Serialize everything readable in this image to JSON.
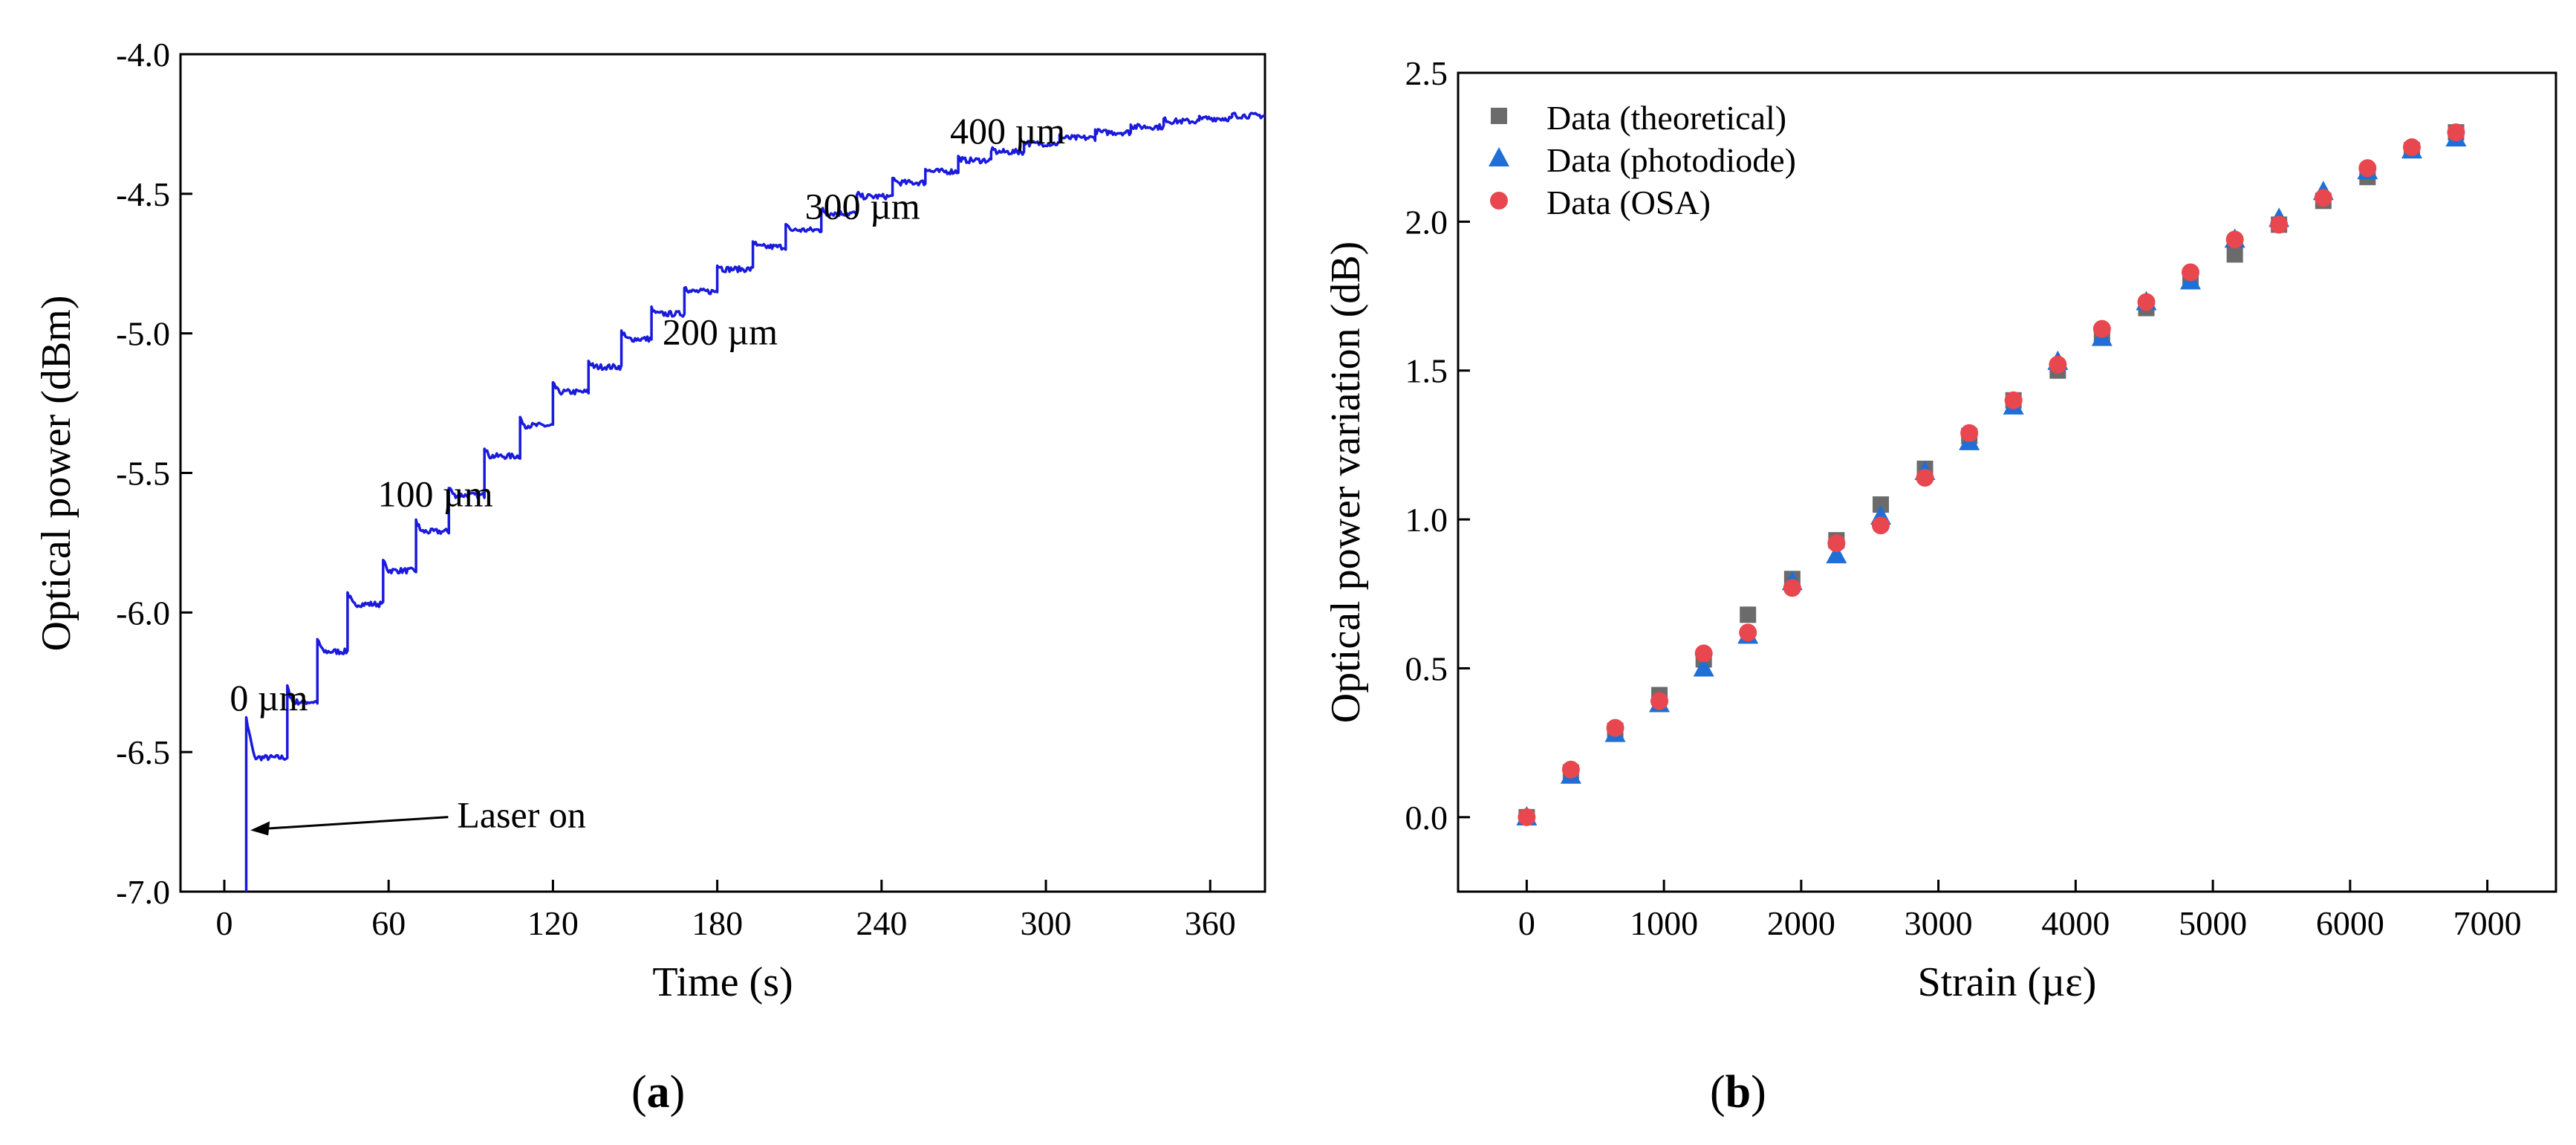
{
  "chart_data": [
    {
      "type": "line",
      "panel": "a",
      "caption_letter": "a",
      "title": "",
      "xlabel": "Time (s)",
      "ylabel": "Optical power (dBm)",
      "xlim": [
        -16,
        380
      ],
      "ylim": [
        -7.0,
        -4.0
      ],
      "xticks": [
        0,
        60,
        120,
        180,
        240,
        300,
        360
      ],
      "xtick_labels": [
        "0",
        "60",
        "120",
        "180",
        "240",
        "300",
        "360"
      ],
      "yticks": [
        -7.0,
        -6.5,
        -6.0,
        -5.5,
        -5.0,
        -4.5,
        -4.0
      ],
      "ytick_labels": [
        "-7.0",
        "-6.5",
        "-6.0",
        "-5.5",
        "-5.0",
        "-4.5",
        "-4.0"
      ],
      "line_color": "#1a1adc",
      "series": [
        {
          "name": "Optical power",
          "laser_on_time": 8,
          "start_level": -7.0,
          "step_times": [
            8,
            23,
            34,
            45,
            58,
            70,
            82,
            95,
            108,
            120,
            133,
            145,
            156,
            168,
            180,
            193,
            205,
            218,
            231,
            244,
            256,
            268,
            280,
            292,
            305,
            318,
            331,
            343,
            356,
            368
          ],
          "levels": [
            -6.52,
            -6.32,
            -6.14,
            -5.97,
            -5.85,
            -5.71,
            -5.58,
            -5.44,
            -5.33,
            -5.21,
            -5.12,
            -5.02,
            -4.93,
            -4.85,
            -4.77,
            -4.69,
            -4.63,
            -4.57,
            -4.51,
            -4.46,
            -4.42,
            -4.38,
            -4.35,
            -4.32,
            -4.3,
            -4.28,
            -4.26,
            -4.24,
            -4.23,
            -4.22
          ],
          "end_time": 380
        }
      ],
      "annotations": [
        {
          "text": "0 µm",
          "x": 2,
          "y": -6.35
        },
        {
          "text": "100 µm",
          "x": 56,
          "y": -5.62
        },
        {
          "text": "200 µm",
          "x": 160,
          "y": -5.04
        },
        {
          "text": "300 µm",
          "x": 212,
          "y": -4.59
        },
        {
          "text": "400 µm",
          "x": 265,
          "y": -4.32
        },
        {
          "text": "Laser on",
          "x": 85,
          "y": -6.77,
          "arrow_to": [
            9,
            -6.78
          ]
        }
      ]
    },
    {
      "type": "scatter",
      "panel": "b",
      "caption_letter": "b",
      "title": "",
      "xlabel": "Strain (µε)",
      "ylabel": "Optical power variation (dB)",
      "xlim": [
        -500,
        7500
      ],
      "ylim": [
        -0.25,
        2.5
      ],
      "xticks": [
        0,
        1000,
        2000,
        3000,
        4000,
        5000,
        6000,
        7000
      ],
      "xtick_labels": [
        "0",
        "1000",
        "2000",
        "3000",
        "4000",
        "5000",
        "6000",
        "7000"
      ],
      "yticks": [
        0.0,
        0.5,
        1.0,
        1.5,
        2.0,
        2.5
      ],
      "ytick_labels": [
        "0.0",
        "0.5",
        "1.0",
        "1.5",
        "2.0",
        "2.5"
      ],
      "legend_position": "top-left",
      "x": [
        0,
        322,
        645,
        967,
        1290,
        1612,
        1935,
        2257,
        2580,
        2902,
        3225,
        3547,
        3870,
        4192,
        4515,
        4837,
        5160,
        5482,
        5805,
        6127,
        6450,
        6772
      ],
      "series": [
        {
          "name": "Data (theoretical)",
          "marker": "square",
          "color": "#6b6b6b",
          "values": [
            0.0,
            0.15,
            0.29,
            0.41,
            0.53,
            0.68,
            0.8,
            0.93,
            1.05,
            1.17,
            1.28,
            1.4,
            1.5,
            1.62,
            1.71,
            1.8,
            1.89,
            1.99,
            2.07,
            2.15,
            2.24,
            2.3
          ]
        },
        {
          "name": "Data (photodiode)",
          "marker": "triangle",
          "color": "#1f6fd6",
          "values": [
            0.0,
            0.14,
            0.28,
            0.38,
            0.5,
            0.61,
            0.79,
            0.88,
            1.01,
            1.16,
            1.26,
            1.38,
            1.53,
            1.61,
            1.73,
            1.8,
            1.94,
            2.01,
            2.1,
            2.17,
            2.24,
            2.28
          ]
        },
        {
          "name": "Data (OSA)",
          "marker": "circle",
          "color": "#e8474f",
          "values": [
            0.0,
            0.16,
            0.3,
            0.39,
            0.55,
            0.62,
            0.77,
            0.92,
            0.98,
            1.14,
            1.29,
            1.4,
            1.52,
            1.64,
            1.73,
            1.83,
            1.94,
            1.99,
            2.08,
            2.18,
            2.25,
            2.3
          ]
        }
      ]
    }
  ]
}
